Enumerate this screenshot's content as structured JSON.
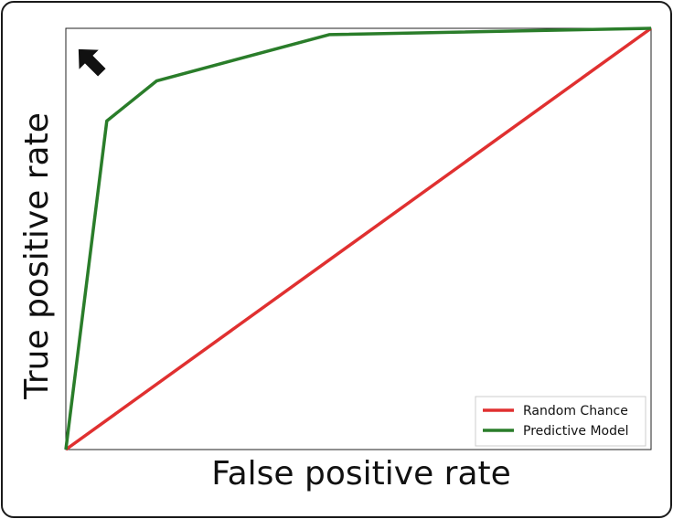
{
  "chart_data": {
    "type": "line",
    "title": "",
    "xlabel": "False positive rate",
    "ylabel": "True positive rate",
    "xlim": [
      0,
      1
    ],
    "ylim": [
      0,
      1
    ],
    "grid": false,
    "legend_position": "bottom-right",
    "series": [
      {
        "name": "Random Chance",
        "color": "#e03030",
        "x": [
          0,
          1
        ],
        "y": [
          0,
          1
        ]
      },
      {
        "name": "Predictive Model",
        "color": "#2a7d2a",
        "x": [
          0,
          0.07,
          0.155,
          0.45,
          1
        ],
        "y": [
          0,
          0.78,
          0.875,
          0.985,
          1
        ]
      }
    ],
    "annotation": {
      "icon": "arrow-up-left-icon",
      "color": "#111111"
    }
  }
}
